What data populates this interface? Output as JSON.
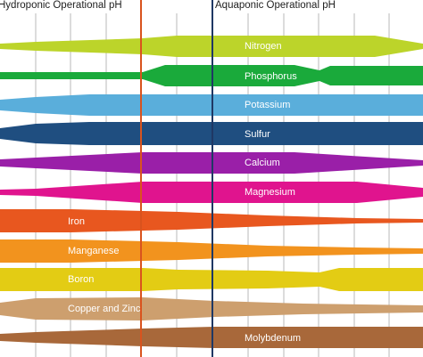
{
  "headers": {
    "hydroponic": "Hydroponic Operational pH",
    "aquaponic": "Aquaponic Operational pH"
  },
  "colors": {
    "grid": "#b8b8b8",
    "hydroponic_line": "#d9531e",
    "aquaponic_line": "#1f3864"
  },
  "nutrients": [
    {
      "name": "Nitrogen",
      "color": "#bcd42a"
    },
    {
      "name": "Phosphorus",
      "color": "#1aaa3b"
    },
    {
      "name": "Potassium",
      "color": "#5aaedb"
    },
    {
      "name": "Sulfur",
      "color": "#1f4e80"
    },
    {
      "name": "Calcium",
      "color": "#9a1fa8"
    },
    {
      "name": "Magnesium",
      "color": "#e0148e"
    },
    {
      "name": "Iron",
      "color": "#e8571f"
    },
    {
      "name": "Manganese",
      "color": "#f2931e"
    },
    {
      "name": "Boron",
      "color": "#e3cc14"
    },
    {
      "name": "Copper and Zinc",
      "color": "#cd9f6e"
    },
    {
      "name": "Molybdenum",
      "color": "#a8683a"
    }
  ]
}
